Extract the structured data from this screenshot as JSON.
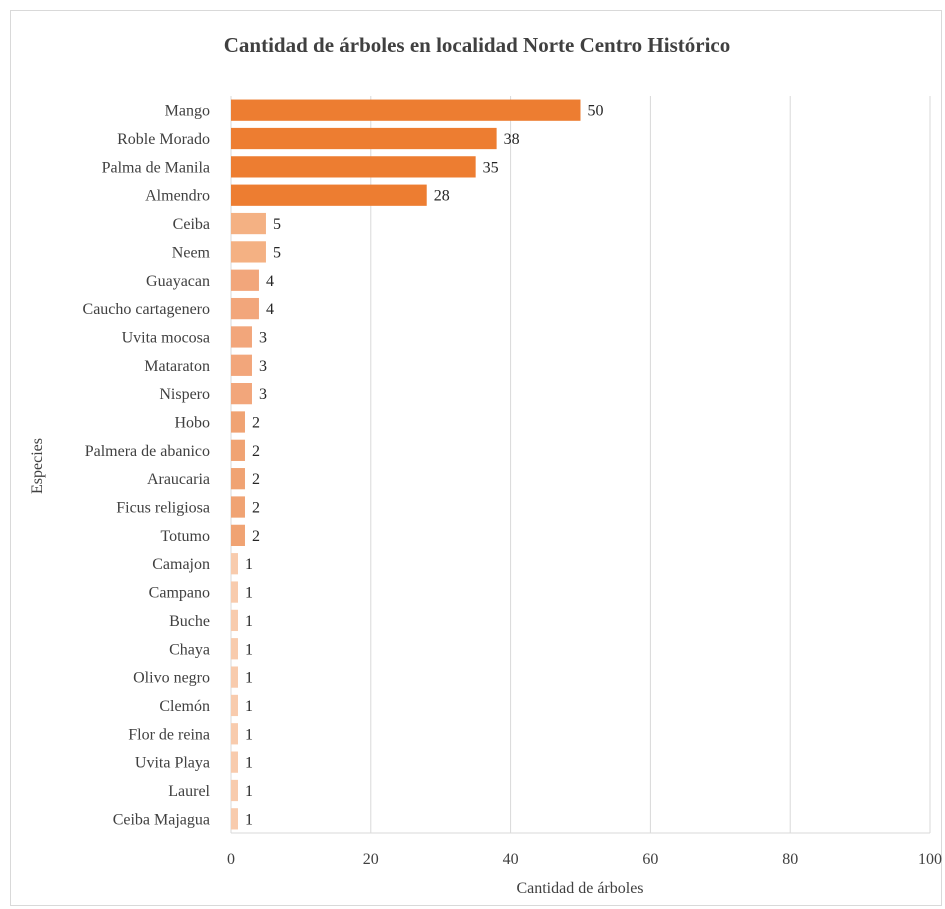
{
  "chart_data": {
    "type": "bar",
    "orientation": "horizontal",
    "title": "Cantidad de árboles en localidad Norte Centro Histórico",
    "xlabel": "Cantidad de árboles",
    "ylabel": "Especies",
    "xlim": [
      0,
      100
    ],
    "xticks": [
      0,
      20,
      40,
      60,
      80,
      100
    ],
    "grid": true,
    "data_labels": true,
    "categories": [
      "Mango",
      "Roble Morado",
      "Palma de Manila",
      "Almendro",
      "Ceiba",
      "Neem",
      "Guayacan",
      "Caucho cartagenero",
      "Uvita mocosa",
      "Mataraton",
      "Nispero",
      "Hobo",
      "Palmera de abanico",
      "Araucaria",
      "Ficus religiosa",
      "Totumo",
      "Camajon",
      "Campano",
      "Buche",
      "Chaya",
      "Olivo negro",
      "Clemón",
      "Flor de reina",
      "Uvita Playa",
      "Laurel",
      "Ceiba Majagua"
    ],
    "values": [
      50,
      38,
      35,
      28,
      5,
      5,
      4,
      4,
      3,
      3,
      3,
      2,
      2,
      2,
      2,
      2,
      1,
      1,
      1,
      1,
      1,
      1,
      1,
      1,
      1,
      1
    ],
    "colors": {
      "high": "#ed7d31",
      "mid_5": "#f4b183",
      "mid_3_4": "#f2a67b",
      "mid_2": "#f0a373",
      "low": "#f8cbad",
      "grid": "#d9d9d9"
    }
  }
}
